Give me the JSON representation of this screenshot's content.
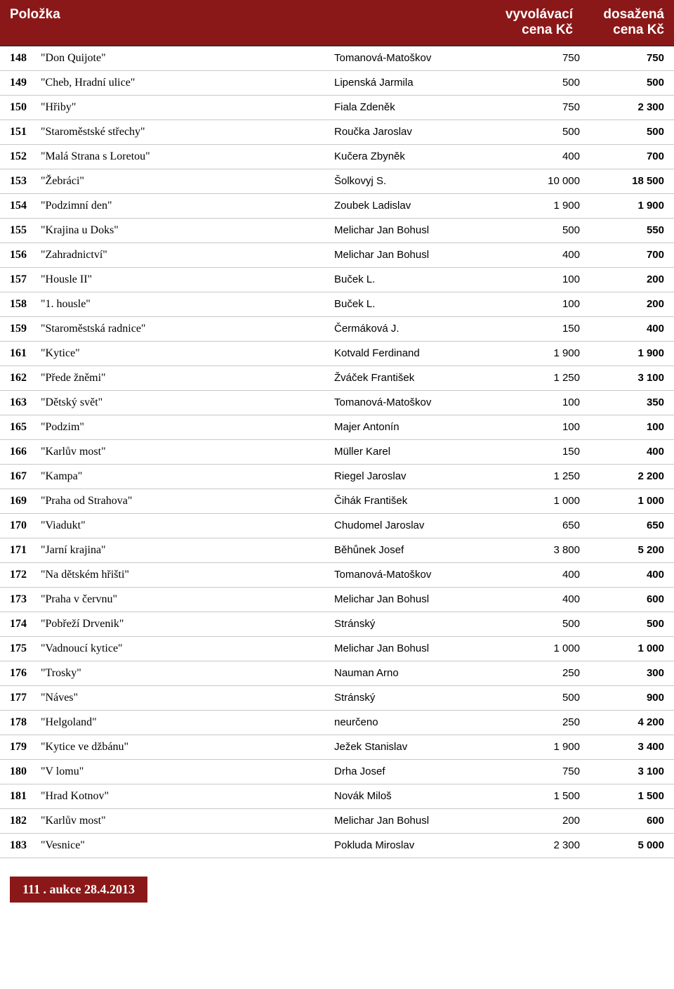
{
  "colors": {
    "header_bg": "#8b1818",
    "header_fg": "#ffffff",
    "row_border": "#c8c8c8",
    "footer_bg": "#8b1818",
    "footer_fg": "#ffffff"
  },
  "header": {
    "item_label": "Položka",
    "start_label_line1": "vyvolávací",
    "start_label_line2": "cena Kč",
    "reached_label_line1": "dosažená",
    "reached_label_line2": "cena Kč"
  },
  "rows": [
    {
      "idx": "148",
      "title": "\"Don Quijote\"",
      "author": "Tomanová-Matoškov",
      "start": "750",
      "reached": "750"
    },
    {
      "idx": "149",
      "title": "\"Cheb, Hradní ulice\"",
      "author": "Lipenská Jarmila",
      "start": "500",
      "reached": "500"
    },
    {
      "idx": "150",
      "title": "\"Hřiby\"",
      "author": "Fiala Zdeněk",
      "start": "750",
      "reached": "2 300"
    },
    {
      "idx": "151",
      "title": "\"Staroměstské střechy\"",
      "author": "Roučka Jaroslav",
      "start": "500",
      "reached": "500"
    },
    {
      "idx": "152",
      "title": "\"Malá Strana s Loretou\"",
      "author": "Kučera Zbyněk",
      "start": "400",
      "reached": "700"
    },
    {
      "idx": "153",
      "title": "\"Žebráci\"",
      "author": "Šolkovyj S.",
      "start": "10 000",
      "reached": "18 500"
    },
    {
      "idx": "154",
      "title": "\"Podzimní den\"",
      "author": "Zoubek Ladislav",
      "start": "1 900",
      "reached": "1 900"
    },
    {
      "idx": "155",
      "title": "\"Krajina u Doks\"",
      "author": "Melichar Jan Bohusl",
      "start": "500",
      "reached": "550"
    },
    {
      "idx": "156",
      "title": "\"Zahradnictví\"",
      "author": "Melichar Jan Bohusl",
      "start": "400",
      "reached": "700"
    },
    {
      "idx": "157",
      "title": "\"Housle II\"",
      "author": "Buček L.",
      "start": "100",
      "reached": "200"
    },
    {
      "idx": "158",
      "title": "\"1. housle\"",
      "author": "Buček L.",
      "start": "100",
      "reached": "200"
    },
    {
      "idx": "159",
      "title": "\"Staroměstská radnice\"",
      "author": "Čermáková J.",
      "start": "150",
      "reached": "400"
    },
    {
      "idx": "161",
      "title": "\"Kytice\"",
      "author": "Kotvald Ferdinand",
      "start": "1 900",
      "reached": "1 900"
    },
    {
      "idx": "162",
      "title": "\"Přede žněmi\"",
      "author": "Žváček František",
      "start": "1 250",
      "reached": "3 100"
    },
    {
      "idx": "163",
      "title": "\"Dětský svět\"",
      "author": "Tomanová-Matoškov",
      "start": "100",
      "reached": "350"
    },
    {
      "idx": "165",
      "title": "\"Podzim\"",
      "author": "Majer Antonín",
      "start": "100",
      "reached": "100"
    },
    {
      "idx": "166",
      "title": "\"Karlův most\"",
      "author": "Müller Karel",
      "start": "150",
      "reached": "400"
    },
    {
      "idx": "167",
      "title": "\"Kampa\"",
      "author": "Riegel Jaroslav",
      "start": "1 250",
      "reached": "2 200"
    },
    {
      "idx": "169",
      "title": "\"Praha od Strahova\"",
      "author": "Čihák František",
      "start": "1 000",
      "reached": "1 000"
    },
    {
      "idx": "170",
      "title": "\"Viadukt\"",
      "author": "Chudomel Jaroslav",
      "start": "650",
      "reached": "650"
    },
    {
      "idx": "171",
      "title": "\"Jarní krajina\"",
      "author": "Běhůnek Josef",
      "start": "3 800",
      "reached": "5 200"
    },
    {
      "idx": "172",
      "title": "\"Na dětském hřišti\"",
      "author": "Tomanová-Matoškov",
      "start": "400",
      "reached": "400"
    },
    {
      "idx": "173",
      "title": "\"Praha v červnu\"",
      "author": "Melichar Jan Bohusl",
      "start": "400",
      "reached": "600"
    },
    {
      "idx": "174",
      "title": "\"Pobřeží Drvenik\"",
      "author": "Stránský",
      "start": "500",
      "reached": "500"
    },
    {
      "idx": "175",
      "title": "\"Vadnoucí kytice\"",
      "author": "Melichar Jan Bohusl",
      "start": "1 000",
      "reached": "1 000"
    },
    {
      "idx": "176",
      "title": "\"Trosky\"",
      "author": "Nauman Arno",
      "start": "250",
      "reached": "300"
    },
    {
      "idx": "177",
      "title": "\"Náves\"",
      "author": "Stránský",
      "start": "500",
      "reached": "900"
    },
    {
      "idx": "178",
      "title": "\"Helgoland\"",
      "author": "neurčeno",
      "start": "250",
      "reached": "4 200"
    },
    {
      "idx": "179",
      "title": "\"Kytice ve džbánu\"",
      "author": "Ježek Stanislav",
      "start": "1 900",
      "reached": "3 400"
    },
    {
      "idx": "180",
      "title": "\"V lomu\"",
      "author": "Drha Josef",
      "start": "750",
      "reached": "3 100"
    },
    {
      "idx": "181",
      "title": "\"Hrad Kotnov\"",
      "author": "Novák Miloš",
      "start": "1 500",
      "reached": "1 500"
    },
    {
      "idx": "182",
      "title": "\"Karlův most\"",
      "author": "Melichar Jan Bohusl",
      "start": "200",
      "reached": "600"
    },
    {
      "idx": "183",
      "title": "\"Vesnice\"",
      "author": "Pokluda Miroslav",
      "start": "2 300",
      "reached": "5 000"
    }
  ],
  "footer": {
    "text": "111 . aukce   28.4.2013"
  }
}
